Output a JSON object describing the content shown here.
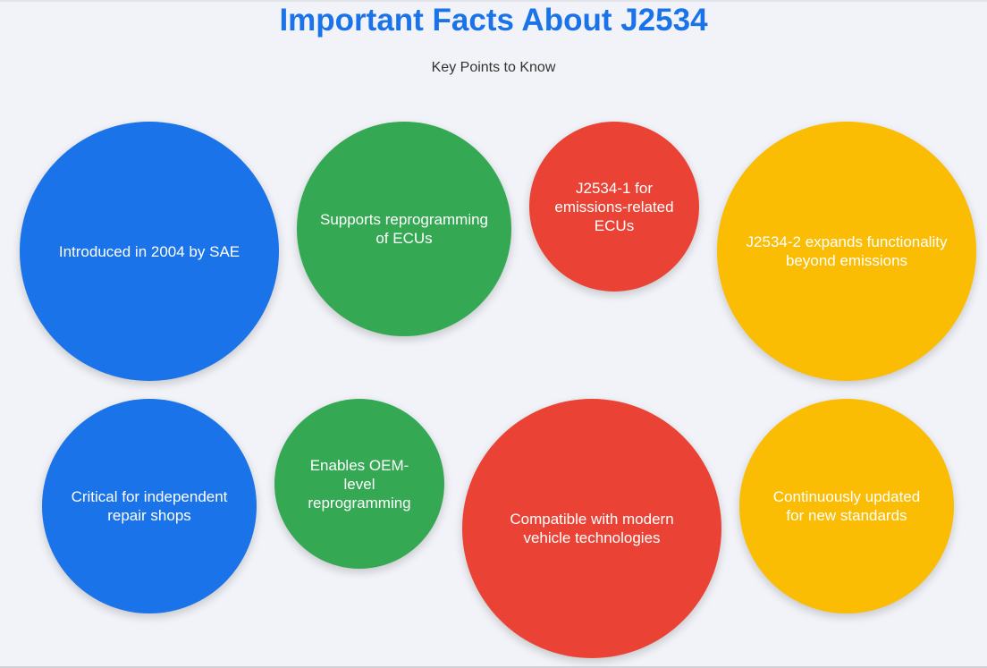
{
  "header": {
    "title": "Important Facts About J2534",
    "subtitle": "Key Points to Know"
  },
  "colors": {
    "blue": "#1a73e8",
    "green": "#34a853",
    "red": "#ea4335",
    "yellow": "#fbbc04",
    "background": "#f1f3f8"
  },
  "facts": [
    {
      "text": "Introduced in 2004 by SAE",
      "color": "blue"
    },
    {
      "text": "Supports reprogramming of ECUs",
      "color": "green"
    },
    {
      "text": "J2534-1 for emissions-related ECUs",
      "color": "red"
    },
    {
      "text": "J2534-2 expands functionality beyond emissions",
      "color": "yellow"
    },
    {
      "text": "Critical for independent repair shops",
      "color": "blue"
    },
    {
      "text": "Enables OEM-level reprogramming",
      "color": "green"
    },
    {
      "text": "Compatible with modern vehicle technologies",
      "color": "red"
    },
    {
      "text": "Continuously updated for new standards",
      "color": "yellow"
    }
  ]
}
